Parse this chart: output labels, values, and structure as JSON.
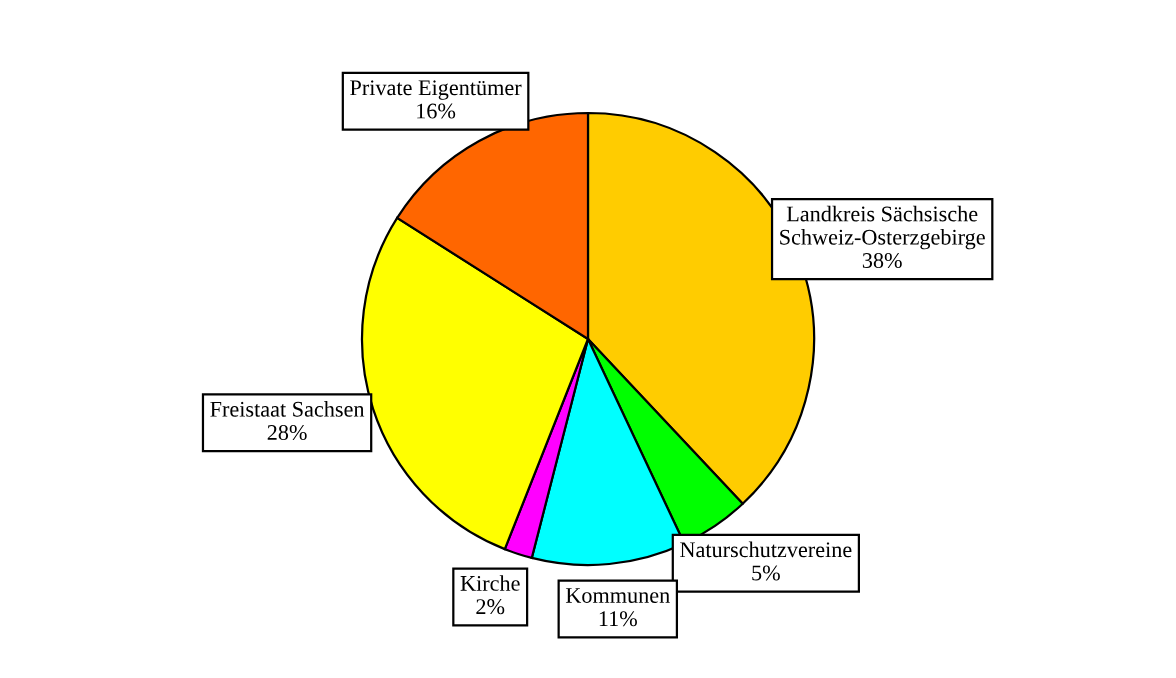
{
  "chart_data": {
    "type": "pie",
    "categories": [
      "Landkreis Sächsische\nSchweiz-Osterzgebirge",
      "Naturschutzvereine",
      "Kommunen",
      "Kirche",
      "Freistaat Sachsen",
      "Private Eigentümer"
    ],
    "values": [
      38,
      5,
      11,
      2,
      28,
      16
    ],
    "value_labels": [
      "38%",
      "5%",
      "11%",
      "2%",
      "28%",
      "16%"
    ],
    "colors": [
      "#ffcc00",
      "#00ff00",
      "#00ffff",
      "#ff00ff",
      "#ffff00",
      "#ff6600"
    ]
  }
}
